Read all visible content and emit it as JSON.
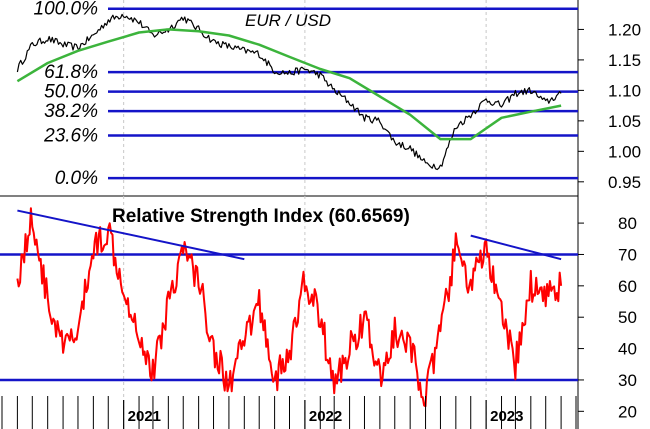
{
  "chart_data": [
    {
      "type": "line",
      "title": "EUR / USD",
      "ylim": [
        0.93,
        1.245
      ],
      "yticks": [
        "1.20",
        "1.15",
        "1.10",
        "1.05",
        "1.00",
        "0.95"
      ],
      "ytick_values": [
        1.2,
        1.15,
        1.1,
        1.05,
        1.0,
        0.95
      ],
      "fibonacci_levels": [
        {
          "label": "100.0%",
          "value": 1.234
        },
        {
          "label": "61.8%",
          "value": 1.13
        },
        {
          "label": "50.0%",
          "value": 1.098
        },
        {
          "label": "38.2%",
          "value": 1.066
        },
        {
          "label": "23.6%",
          "value": 1.026
        },
        {
          "label": "0.0%",
          "value": 0.956
        }
      ],
      "series": [
        {
          "color": "#000000",
          "x": [
            "2020-06-01",
            "2020-07-01",
            "2020-08-01",
            "2020-09-01",
            "2020-10-01",
            "2020-11-01",
            "2020-12-01",
            "2021-01-01",
            "2021-02-01",
            "2021-03-01",
            "2021-04-01",
            "2021-05-01",
            "2021-06-01",
            "2021-07-01",
            "2021-08-01",
            "2021-09-01",
            "2021-10-01",
            "2021-11-01",
            "2021-12-01",
            "2022-01-01",
            "2022-02-01",
            "2022-03-01",
            "2022-04-01",
            "2022-05-01",
            "2022-06-01",
            "2022-07-01",
            "2022-08-01",
            "2022-09-01",
            "2022-10-01",
            "2022-11-01",
            "2022-12-01",
            "2023-01-01",
            "2023-02-01",
            "2023-03-01",
            "2023-04-01",
            "2023-05-01",
            "2023-06-01"
          ],
          "y": [
            1.135,
            1.175,
            1.185,
            1.175,
            1.17,
            1.19,
            1.215,
            1.225,
            1.212,
            1.19,
            1.2,
            1.22,
            1.2,
            1.18,
            1.172,
            1.165,
            1.16,
            1.132,
            1.128,
            1.135,
            1.125,
            1.1,
            1.08,
            1.055,
            1.05,
            1.015,
            1.005,
            0.98,
            0.975,
            1.04,
            1.06,
            1.085,
            1.075,
            1.095,
            1.1,
            1.08,
            1.095
          ]
        },
        {
          "color": "#3cb43c",
          "x": [
            "2020-06-01",
            "2020-08-01",
            "2020-10-01",
            "2020-12-01",
            "2021-02-01",
            "2021-04-01",
            "2021-06-01",
            "2021-08-01",
            "2021-10-01",
            "2021-12-01",
            "2022-02-01",
            "2022-04-01",
            "2022-06-01",
            "2022-08-01",
            "2022-10-01",
            "2022-12-01",
            "2023-02-01",
            "2023-04-01",
            "2023-06-01"
          ],
          "y": [
            1.115,
            1.145,
            1.165,
            1.18,
            1.195,
            1.2,
            1.197,
            1.19,
            1.175,
            1.155,
            1.135,
            1.12,
            1.09,
            1.06,
            1.02,
            1.02,
            1.055,
            1.065,
            1.075
          ]
        }
      ]
    },
    {
      "type": "line",
      "title": "Relative Strength Index (60.6569)",
      "ylim": [
        15,
        88
      ],
      "yticks": [
        "80",
        "70",
        "60",
        "50",
        "40",
        "30",
        "20"
      ],
      "ytick_values": [
        80,
        70,
        60,
        50,
        40,
        30,
        20
      ],
      "reference_levels": [
        70,
        30
      ],
      "x_labels": [
        "2021",
        "2022",
        "2023"
      ],
      "x_label_dates": [
        "2021-01-01",
        "2022-01-01",
        "2023-01-01"
      ],
      "series": [
        {
          "color": "#ff0000",
          "x": [
            "2020-06-01",
            "2020-07-01",
            "2020-08-01",
            "2020-09-01",
            "2020-10-01",
            "2020-11-01",
            "2020-12-01",
            "2021-01-01",
            "2021-02-01",
            "2021-03-01",
            "2021-04-01",
            "2021-05-01",
            "2021-06-01",
            "2021-07-01",
            "2021-08-01",
            "2021-09-01",
            "2021-10-01",
            "2021-11-01",
            "2021-12-01",
            "2022-01-01",
            "2022-02-01",
            "2022-03-01",
            "2022-04-01",
            "2022-05-01",
            "2022-06-01",
            "2022-07-01",
            "2022-08-01",
            "2022-09-01",
            "2022-10-01",
            "2022-11-01",
            "2022-12-01",
            "2023-01-01",
            "2023-02-01",
            "2023-03-01",
            "2023-04-01",
            "2023-05-01",
            "2023-06-01"
          ],
          "y": [
            62,
            82,
            55,
            40,
            45,
            72,
            78,
            60,
            45,
            32,
            55,
            72,
            62,
            40,
            28,
            42,
            55,
            30,
            38,
            62,
            50,
            28,
            40,
            50,
            30,
            45,
            40,
            25,
            45,
            72,
            60,
            72,
            50,
            35,
            60,
            58,
            60
          ]
        }
      ],
      "trendlines": [
        {
          "x": [
            "2020-06-01",
            "2021-09-01"
          ],
          "y": [
            84,
            68.5
          ]
        },
        {
          "x": [
            "2022-12-01",
            "2023-06-01"
          ],
          "y": [
            76,
            68.5
          ]
        }
      ]
    }
  ]
}
